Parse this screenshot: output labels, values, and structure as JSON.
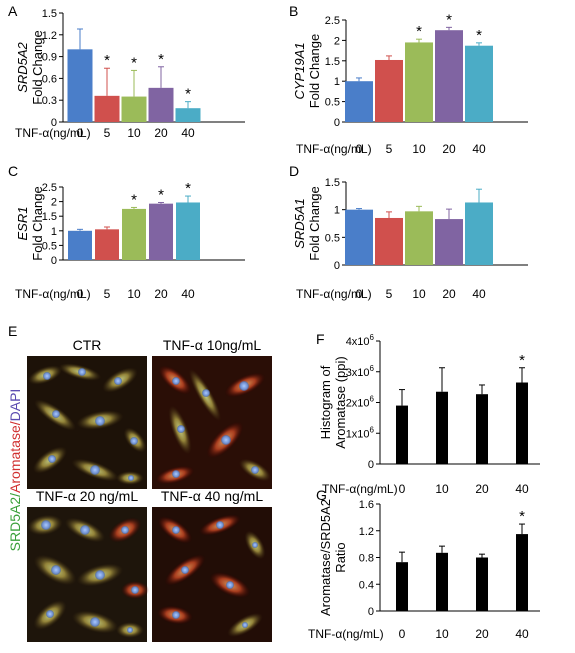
{
  "colors": {
    "c0": "#4a7ec9",
    "c5": "#d0504d",
    "c10": "#9bbb59",
    "c20": "#8064a2",
    "c40": "#4bacc6",
    "black_bar": "#000000"
  },
  "chart_data": [
    {
      "panel": "A",
      "type": "bar",
      "xaxis_title": "TNF-α(ng/mL)",
      "categories": [
        "0",
        "5",
        "10",
        "20",
        "40"
      ],
      "values": [
        1.0,
        0.36,
        0.35,
        0.47,
        0.19
      ],
      "errors": [
        0.28,
        0.38,
        0.36,
        0.29,
        0.09
      ],
      "significant": [
        false,
        true,
        true,
        true,
        true
      ],
      "ylabel_gene": "SRD5A2",
      "ylabel": "Fold Change",
      "ylim": [
        0,
        1.5
      ],
      "yticks": [
        "0",
        "0.3",
        "0.6",
        "0.9",
        "1.2",
        "1.5"
      ]
    },
    {
      "panel": "B",
      "type": "bar",
      "xaxis_title": "TNF-α(ng/mL)",
      "categories": [
        "0",
        "5",
        "10",
        "20",
        "40"
      ],
      "values": [
        1.0,
        1.52,
        1.95,
        2.25,
        1.87
      ],
      "errors": [
        0.08,
        0.1,
        0.08,
        0.07,
        0.07
      ],
      "significant": [
        false,
        false,
        true,
        true,
        true
      ],
      "ylabel_gene": "CYP19A1",
      "ylabel": "Fold Change",
      "ylim": [
        0,
        2.5
      ],
      "yticks": [
        "0",
        "0.5",
        "1",
        "1.5",
        "2",
        "2.5"
      ]
    },
    {
      "panel": "C",
      "type": "bar",
      "xaxis_title": "TNF-α(ng/mL)",
      "categories": [
        "0",
        "5",
        "10",
        "20",
        "40"
      ],
      "values": [
        1.0,
        1.05,
        1.75,
        1.93,
        1.97
      ],
      "errors": [
        0.05,
        0.08,
        0.05,
        0.04,
        0.22
      ],
      "significant": [
        false,
        false,
        true,
        true,
        true
      ],
      "ylabel_gene": "ESR1",
      "ylabel": "Fold Change",
      "ylim": [
        0,
        2.5
      ],
      "yticks": [
        "0",
        "0.5",
        "1",
        "1.5",
        "2",
        "2.5"
      ]
    },
    {
      "panel": "D",
      "type": "bar",
      "xaxis_title": "TNF-α(ng/mL)",
      "categories": [
        "0",
        "5",
        "10",
        "20",
        "40"
      ],
      "values": [
        1.0,
        0.85,
        0.97,
        0.83,
        1.13
      ],
      "errors": [
        0.02,
        0.11,
        0.09,
        0.18,
        0.24
      ],
      "significant": [
        false,
        false,
        false,
        false,
        false
      ],
      "ylabel_gene": "SRD5A1",
      "ylabel": "Fold Change",
      "ylim": [
        0,
        1.5
      ],
      "yticks": [
        "0",
        "0.5",
        "1",
        "1.5"
      ]
    },
    {
      "panel": "F",
      "type": "bar",
      "xaxis_title": "TNF-α(ng/mL)",
      "categories": [
        "0",
        "10",
        "20",
        "40"
      ],
      "values": [
        1900000,
        2350000,
        2270000,
        2650000
      ],
      "errors": [
        520000,
        780000,
        300000,
        480000
      ],
      "significant": [
        false,
        false,
        false,
        true
      ],
      "ylabel_lines": [
        "Histogram of",
        "Aromatase (ppi)"
      ],
      "ylim": [
        0,
        4000000
      ],
      "yticks_mantissa": [
        "0",
        "1x10",
        "2x10",
        "3x10",
        "4x10"
      ],
      "ytick_exponent": "6"
    },
    {
      "panel": "G",
      "type": "bar",
      "xaxis_title": "TNF-α(ng/mL)",
      "categories": [
        "0",
        "10",
        "20",
        "40"
      ],
      "values": [
        0.73,
        0.87,
        0.8,
        1.15
      ],
      "errors": [
        0.15,
        0.1,
        0.05,
        0.15
      ],
      "significant": [
        false,
        false,
        false,
        true
      ],
      "ylabel_lines": [
        "Aromatase/SRD5A2",
        "Ratio"
      ],
      "ylim": [
        0,
        1.6
      ],
      "yticks": [
        "0",
        "0.4",
        "0.8",
        "1.2",
        "1.6"
      ]
    }
  ],
  "panel_e": {
    "letter": "E",
    "vertical_label": {
      "part1": "SRD5A2/",
      "part2": "Aromatase/",
      "part3": "DAPI"
    },
    "image_titles": [
      "CTR",
      "TNF-α 10ng/mL",
      "TNF-α 20 ng/mL",
      "TNF-α 40 ng/mL"
    ]
  },
  "significance_marker": "*"
}
